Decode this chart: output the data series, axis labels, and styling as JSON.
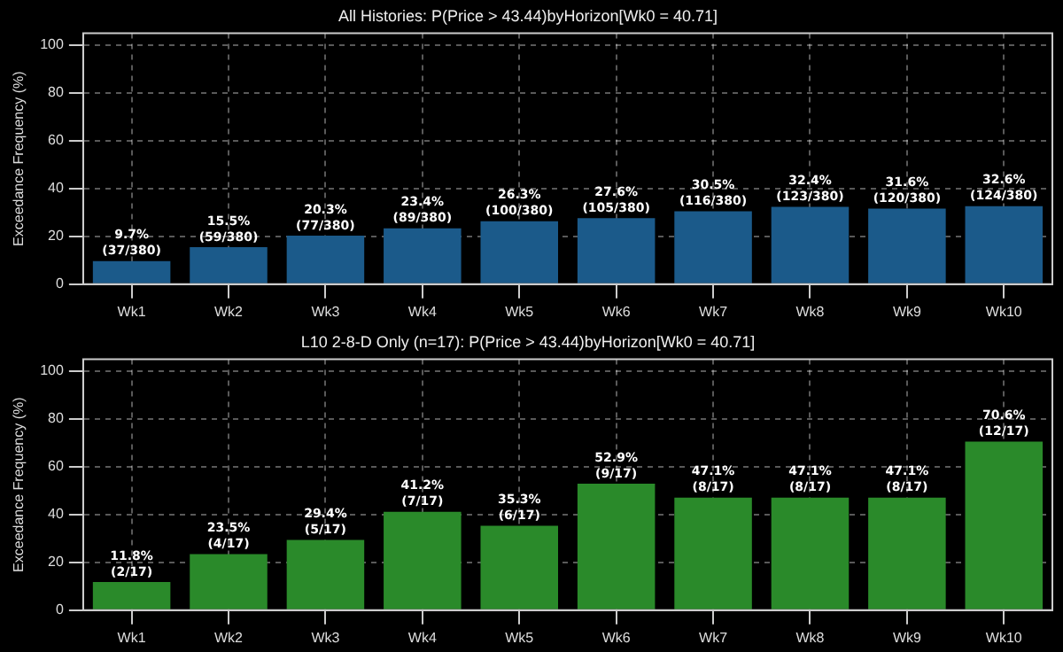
{
  "chart_data": [
    {
      "type": "bar",
      "title": "All Histories: P(Price > 43.44)byHorizon[Wk0 = 40.71]",
      "ylabel": "Exceedance Frequency (%)",
      "categories": [
        "Wk1",
        "Wk2",
        "Wk3",
        "Wk4",
        "Wk5",
        "Wk6",
        "Wk7",
        "Wk8",
        "Wk9",
        "Wk10"
      ],
      "values": [
        9.7,
        15.5,
        20.3,
        23.4,
        26.3,
        27.6,
        30.5,
        32.4,
        31.6,
        32.6
      ],
      "value_labels": [
        "9.7%\n(37/380)",
        "15.5%\n(59/380)",
        "20.3%\n(77/380)",
        "23.4%\n(89/380)",
        "26.3%\n(100/380)",
        "27.6%\n(105/380)",
        "30.5%\n(116/380)",
        "32.4%\n(123/380)",
        "31.6%\n(120/380)",
        "32.6%\n(124/380)"
      ],
      "color": "#1b5a8a",
      "ylim": [
        0,
        105
      ],
      "yticks": [
        0,
        20,
        40,
        60,
        80,
        100
      ],
      "grid": true
    },
    {
      "type": "bar",
      "title": "L10 2-8-D Only (n=17): P(Price > 43.44)byHorizon[Wk0 = 40.71]",
      "ylabel": "Exceedance Frequency (%)",
      "categories": [
        "Wk1",
        "Wk2",
        "Wk3",
        "Wk4",
        "Wk5",
        "Wk6",
        "Wk7",
        "Wk8",
        "Wk9",
        "Wk10"
      ],
      "values": [
        11.8,
        23.5,
        29.4,
        41.2,
        35.3,
        52.9,
        47.1,
        47.1,
        47.1,
        70.6
      ],
      "value_labels": [
        "11.8%\n(2/17)",
        "23.5%\n(4/17)",
        "29.4%\n(5/17)",
        "41.2%\n(7/17)",
        "35.3%\n(6/17)",
        "52.9%\n(9/17)",
        "47.1%\n(8/17)",
        "47.1%\n(8/17)",
        "47.1%\n(8/17)",
        "70.6%\n(12/17)"
      ],
      "color": "#2a8a2a",
      "ylim": [
        0,
        105
      ],
      "yticks": [
        0,
        20,
        40,
        60,
        80,
        100
      ],
      "grid": true
    }
  ]
}
